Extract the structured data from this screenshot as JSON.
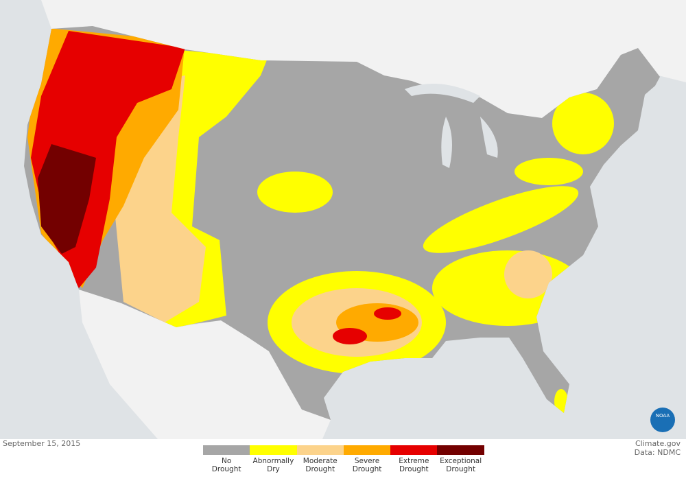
{
  "date": "September 15, 2015",
  "logo": "NOAA",
  "credits": {
    "source": "Climate.gov",
    "data": "Data: NDMC"
  },
  "legend": {
    "items": [
      {
        "lines": [
          "No",
          "Drought"
        ],
        "color": "#a6a6a6"
      },
      {
        "lines": [
          "Abnormally",
          "Dry"
        ],
        "color": "#ffff00"
      },
      {
        "lines": [
          "Moderate",
          "Drought"
        ],
        "color": "#fcd38b"
      },
      {
        "lines": [
          "Severe",
          "Drought"
        ],
        "color": "#ffaa00"
      },
      {
        "lines": [
          "Extreme",
          "Drought"
        ],
        "color": "#e60000"
      },
      {
        "lines": [
          "Exceptional",
          "Drought"
        ],
        "color": "#730000"
      }
    ]
  }
}
